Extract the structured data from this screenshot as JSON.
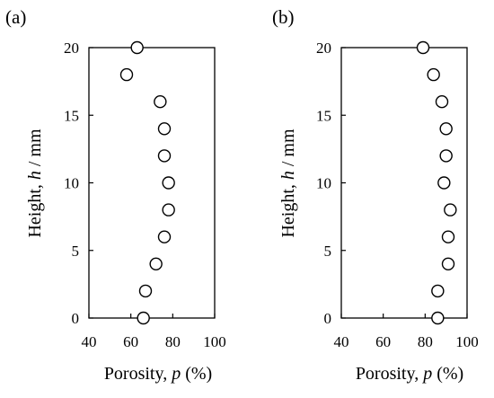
{
  "chart_data": [
    {
      "type": "scatter",
      "panel_label": "(a)",
      "xlabel": {
        "text": "Porosity, ",
        "var": "p",
        "unit": " (%)"
      },
      "ylabel": {
        "text": "Height, ",
        "var": "h",
        "unit": " / mm"
      },
      "xlim": [
        40,
        100
      ],
      "ylim": [
        0,
        20
      ],
      "xticks": [
        "40",
        "60",
        "80",
        "100"
      ],
      "yticks": [
        "0",
        "5",
        "10",
        "15",
        "20"
      ],
      "grid": false,
      "marker": "open-circle",
      "points": [
        {
          "x": 66,
          "y": 0
        },
        {
          "x": 67,
          "y": 2
        },
        {
          "x": 72,
          "y": 4
        },
        {
          "x": 76,
          "y": 6
        },
        {
          "x": 78,
          "y": 8
        },
        {
          "x": 78,
          "y": 10
        },
        {
          "x": 76,
          "y": 12
        },
        {
          "x": 76,
          "y": 14
        },
        {
          "x": 74,
          "y": 16
        },
        {
          "x": 58,
          "y": 18
        },
        {
          "x": 63,
          "y": 20
        }
      ]
    },
    {
      "type": "scatter",
      "panel_label": "(b)",
      "xlabel": {
        "text": "Porosity, ",
        "var": "p",
        "unit": " (%)"
      },
      "ylabel": {
        "text": "Height, ",
        "var": "h",
        "unit": " / mm"
      },
      "xlim": [
        40,
        100
      ],
      "ylim": [
        0,
        20
      ],
      "xticks": [
        "40",
        "60",
        "80",
        "100"
      ],
      "yticks": [
        "0",
        "5",
        "10",
        "15",
        "20"
      ],
      "grid": false,
      "marker": "open-circle",
      "points": [
        {
          "x": 86,
          "y": 0
        },
        {
          "x": 86,
          "y": 2
        },
        {
          "x": 91,
          "y": 4
        },
        {
          "x": 91,
          "y": 6
        },
        {
          "x": 92,
          "y": 8
        },
        {
          "x": 89,
          "y": 10
        },
        {
          "x": 90,
          "y": 12
        },
        {
          "x": 90,
          "y": 14
        },
        {
          "x": 88,
          "y": 16
        },
        {
          "x": 84,
          "y": 18
        },
        {
          "x": 79,
          "y": 20
        }
      ]
    }
  ]
}
